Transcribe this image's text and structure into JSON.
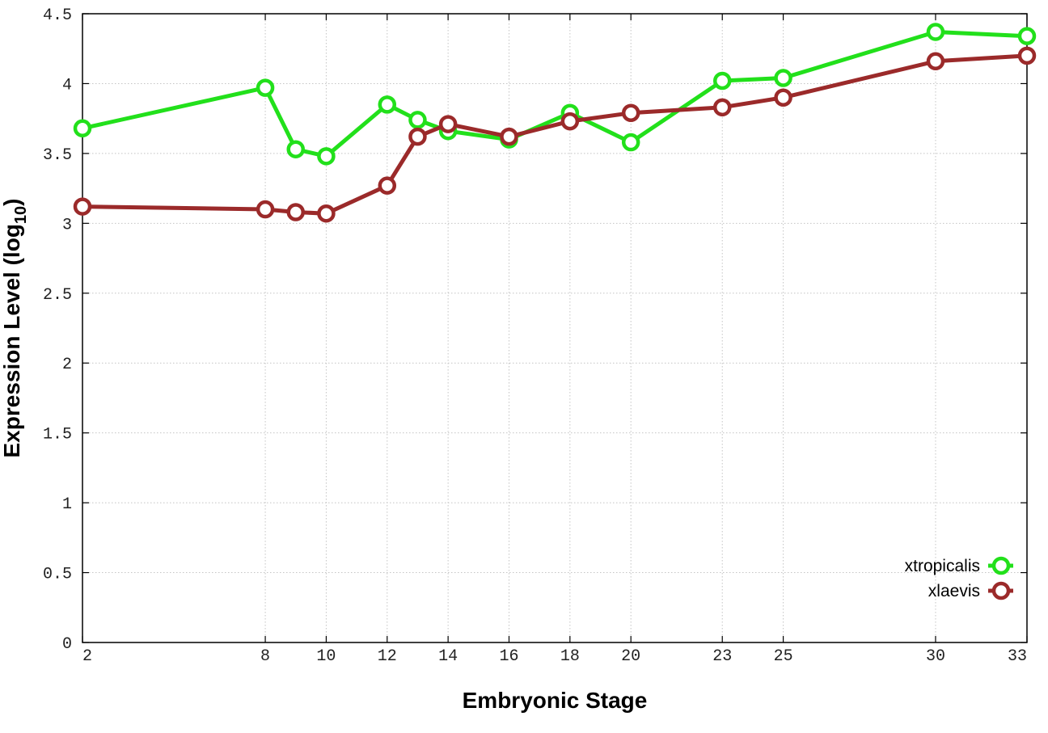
{
  "chart_data": {
    "type": "line",
    "xlabel": "Embryonic Stage",
    "ylabel_main": "Expression Level (log",
    "ylabel_sub": "10",
    "ylabel_close": ")",
    "xlim": [
      2,
      33
    ],
    "ylim": [
      0,
      4.5
    ],
    "x_ticks": [
      2,
      8,
      10,
      12,
      14,
      16,
      18,
      20,
      23,
      25,
      30,
      33
    ],
    "x_tick_labels": [
      "2",
      "8",
      "10",
      "12",
      "14",
      "16",
      "18",
      "20",
      "23",
      "25",
      "30",
      "33"
    ],
    "y_ticks": [
      0,
      0.5,
      1,
      1.5,
      2,
      2.5,
      3,
      3.5,
      4,
      4.5
    ],
    "y_tick_labels": [
      "0",
      "0.5",
      "1",
      "1.5",
      "2",
      "2.5",
      "3",
      "3.5",
      "4",
      "4.5"
    ],
    "grid": true,
    "legend_position": "bottom-right",
    "x": [
      2,
      8,
      9,
      10,
      12,
      13,
      14,
      16,
      18,
      20,
      23,
      25,
      30,
      33
    ],
    "series": [
      {
        "name": "xtropicalis",
        "color": "#22e01b",
        "values": [
          3.68,
          3.97,
          3.53,
          3.48,
          3.85,
          3.74,
          3.66,
          3.6,
          3.79,
          3.58,
          4.02,
          4.04,
          4.37,
          4.34
        ]
      },
      {
        "name": "xlaevis",
        "color": "#9b2a2a",
        "values": [
          3.12,
          3.1,
          3.08,
          3.07,
          3.27,
          3.62,
          3.71,
          3.62,
          3.73,
          3.79,
          3.83,
          3.9,
          4.16,
          4.2
        ]
      }
    ]
  }
}
